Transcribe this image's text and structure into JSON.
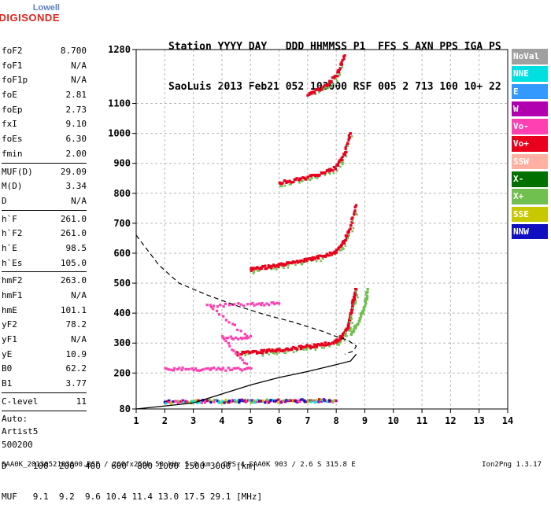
{
  "logo": {
    "top": "Lowell",
    "bottom": "DIGISONDE"
  },
  "header": {
    "labels": "Station YYYY DAY   DDD HHMMSS P1  FFS S AXN PPS IGA PS",
    "values": "SaoLuis 2013 Feb21 052 103000 RSF 005 2 713 100 10+ 22"
  },
  "params_groups": [
    [
      [
        "foF2",
        "8.700"
      ],
      [
        "foF1",
        "N/A"
      ],
      [
        "foF1p",
        "N/A"
      ],
      [
        "foE",
        "2.81"
      ],
      [
        "foEp",
        "2.73"
      ],
      [
        "fxI",
        "9.10"
      ],
      [
        "foEs",
        "6.30"
      ],
      [
        "fmin",
        "2.00"
      ]
    ],
    [
      [
        "MUF(D)",
        "29.09"
      ],
      [
        "M(D)",
        "3.34"
      ],
      [
        "D",
        "N/A"
      ]
    ],
    [
      [
        "h`F",
        "261.0"
      ],
      [
        "h`F2",
        "261.0"
      ],
      [
        "h`E",
        "98.5"
      ],
      [
        "h`Es",
        "105.0"
      ]
    ],
    [
      [
        "hmF2",
        "263.0"
      ],
      [
        "hmF1",
        "N/A"
      ],
      [
        "hmE",
        "101.1"
      ],
      [
        "yF2",
        "78.2"
      ],
      [
        "yF1",
        "N/A"
      ],
      [
        "yE",
        "10.9"
      ],
      [
        "B0",
        "62.2"
      ],
      [
        "B1",
        "3.77"
      ]
    ],
    [
      [
        "C-level",
        "11"
      ]
    ]
  ],
  "auto_lines": [
    "Auto:",
    "Artist5",
    "500200"
  ],
  "legend": [
    {
      "label": "NoVal",
      "color": "#a0a0a0"
    },
    {
      "label": "NNE",
      "color": "#00e0e0"
    },
    {
      "label": "E",
      "color": "#3399ff"
    },
    {
      "label": "W",
      "color": "#b000b0"
    },
    {
      "label": "Vo-",
      "color": "#ff40b0"
    },
    {
      "label": "Vo+",
      "color": "#e8001c"
    },
    {
      "label": "SSW",
      "color": "#ffb0a0"
    },
    {
      "label": "X-",
      "color": "#007000"
    },
    {
      "label": "X+",
      "color": "#70c050"
    },
    {
      "label": "SSE",
      "color": "#c8c800"
    },
    {
      "label": "NNW",
      "color": "#1010c0"
    }
  ],
  "bottom": {
    "line1": "D     100  200  400  600  800 1000 1500 3000 [km]",
    "line2": "MUF   9.1  9.2  9.6 10.4 11.4 13.0 17.5 29.1 [MHz]"
  },
  "footer": {
    "left": "SAA0K_2013052103000.RSF / 260fx256h 50 kHz 5.0 km / DPS-4 SAA0K 903 / 2.6 S 315.8 E",
    "right": "Ion2Png 1.3.17"
  },
  "chart_data": {
    "type": "scatter",
    "title": "",
    "xlabel": "",
    "ylabel": "",
    "xlim": [
      1,
      14
    ],
    "ylim": [
      80,
      1280
    ],
    "x_ticks": [
      1,
      2,
      3,
      4,
      5,
      6,
      7,
      8,
      9,
      10,
      11,
      12,
      13,
      14
    ],
    "y_ticks": [
      80,
      200,
      300,
      400,
      500,
      600,
      700,
      800,
      900,
      1000,
      1100,
      1280
    ],
    "grid": "dashed",
    "traces": [
      {
        "name": "E/Es echoes",
        "color": "mixed",
        "points": [
          [
            2.0,
            103
          ],
          [
            2.5,
            104
          ],
          [
            3.0,
            104
          ],
          [
            3.5,
            105
          ],
          [
            4.0,
            105
          ],
          [
            4.5,
            106
          ],
          [
            5.0,
            106
          ],
          [
            5.5,
            106
          ],
          [
            6.0,
            106
          ],
          [
            6.5,
            106
          ],
          [
            7.0,
            107
          ],
          [
            7.5,
            107
          ],
          [
            8.0,
            107
          ]
        ]
      },
      {
        "name": "F2 trace 1st hop",
        "color": "red",
        "points": [
          [
            4.5,
            264
          ],
          [
            5.0,
            268
          ],
          [
            5.5,
            272
          ],
          [
            6.0,
            276
          ],
          [
            6.5,
            282
          ],
          [
            7.0,
            288
          ],
          [
            7.5,
            294
          ],
          [
            8.0,
            305
          ],
          [
            8.2,
            320
          ],
          [
            8.4,
            350
          ],
          [
            8.5,
            390
          ],
          [
            8.6,
            440
          ],
          [
            8.7,
            480
          ]
        ]
      },
      {
        "name": "F2 trace 1st hop X",
        "color": "green",
        "points": [
          [
            8.5,
            330
          ],
          [
            8.8,
            370
          ],
          [
            9.0,
            420
          ],
          [
            9.1,
            480
          ]
        ]
      },
      {
        "name": "F2 trace 2nd hop",
        "color": "red",
        "points": [
          [
            5.0,
            545
          ],
          [
            5.5,
            552
          ],
          [
            6.0,
            560
          ],
          [
            6.5,
            568
          ],
          [
            7.0,
            577
          ],
          [
            7.5,
            588
          ],
          [
            8.0,
            605
          ],
          [
            8.3,
            640
          ],
          [
            8.5,
            690
          ],
          [
            8.7,
            760
          ]
        ]
      },
      {
        "name": "F2 trace 3rd hop",
        "color": "red",
        "points": [
          [
            6.0,
            835
          ],
          [
            6.5,
            842
          ],
          [
            7.0,
            852
          ],
          [
            7.5,
            865
          ],
          [
            8.0,
            885
          ],
          [
            8.3,
            930
          ],
          [
            8.5,
            1000
          ]
        ]
      },
      {
        "name": "F2 trace 4th hop",
        "color": "red",
        "points": [
          [
            7.0,
            1130
          ],
          [
            7.5,
            1150
          ],
          [
            8.0,
            1190
          ],
          [
            8.3,
            1260
          ]
        ]
      },
      {
        "name": "Es multiples",
        "color": "pink",
        "points": [
          [
            2.0,
            212
          ],
          [
            3.0,
            213
          ],
          [
            4.0,
            213
          ],
          [
            5.0,
            213
          ],
          [
            4.0,
            318
          ],
          [
            5.0,
            318
          ],
          [
            3.5,
            425
          ],
          [
            5.0,
            430
          ],
          [
            6.0,
            432
          ]
        ]
      }
    ],
    "profile_curve": [
      [
        1.0,
        80
      ],
      [
        3.0,
        100
      ],
      [
        5.0,
        160
      ],
      [
        6.0,
        185
      ],
      [
        7.0,
        205
      ],
      [
        8.0,
        228
      ],
      [
        8.5,
        240
      ],
      [
        8.7,
        263
      ]
    ],
    "dashed_curve": [
      [
        1.0,
        660
      ],
      [
        1.8,
        560
      ],
      [
        2.5,
        500
      ],
      [
        3.5,
        460
      ],
      [
        4.5,
        425
      ],
      [
        5.5,
        395
      ],
      [
        6.5,
        370
      ],
      [
        7.5,
        340
      ],
      [
        8.0,
        322
      ],
      [
        8.4,
        310
      ],
      [
        8.7,
        290
      ],
      [
        8.6,
        273
      ],
      [
        8.3,
        263
      ]
    ]
  }
}
